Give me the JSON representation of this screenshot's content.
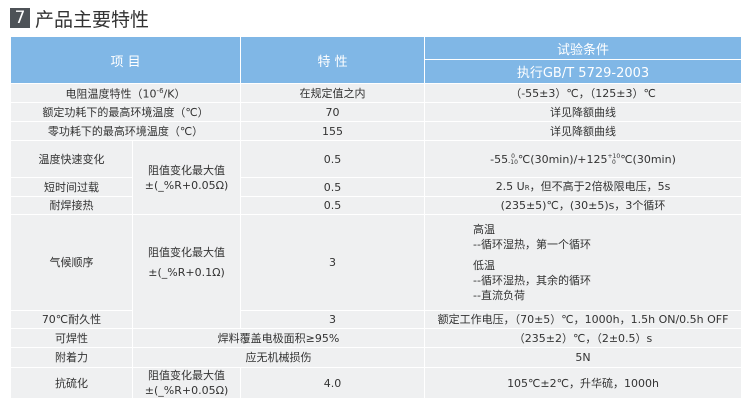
{
  "section": {
    "number": "7",
    "title": "产品主要特性"
  },
  "header": {
    "item": "项 目",
    "property": "特 性",
    "test": "试验条件",
    "standard": "执行GB/T 5729-2003"
  },
  "rows": {
    "r1": {
      "item": "电阻温度特性（10",
      "item_exp": "-6",
      "item_tail": "/K）",
      "property": "在规定值之内",
      "test": "（-55±3）℃，（125±3）℃"
    },
    "r2": {
      "item": "额定功耗下的最高环境温度（℃）",
      "property": "70",
      "test": "详见降额曲线"
    },
    "r3": {
      "item": "零功耗下的最高环境温度（℃）",
      "property": "155",
      "test": "详见降额曲线"
    },
    "r4": {
      "item": "温度快速变化",
      "property": "0.5",
      "test_a": "-55",
      "test_a_up": "0",
      "test_a_dn": "-10",
      "test_b": "℃(30min)/+125",
      "test_b_up": "+10",
      "test_b_dn": "0",
      "test_c": "℃(30min)"
    },
    "r5": {
      "item": "短时间过载",
      "property": "0.5",
      "test": "2.5 U",
      "test_sub": "R",
      "test_tail": "，但不高于2倍极限电压，5s"
    },
    "r6": {
      "item": "耐焊接热",
      "property": "0.5",
      "test": "(235±5)℃，(30±5)s，3个循环"
    },
    "r7": {
      "item": "气候顺序",
      "property": "3",
      "test": [
        "高温",
        "--循环湿热，第一个循环",
        "低温",
        "--循环湿热，其余的循环",
        "--直流负荷"
      ]
    },
    "r8": {
      "item": "70℃耐久性",
      "property": "3",
      "test": "额定工作电压，（70±5）℃，1000h，1.5h ON/0.5h OFF"
    },
    "r9": {
      "item": "可焊性",
      "property": "焊料覆盖电极面积≥95%",
      "test": "（235±2）℃，（2±0.5）s"
    },
    "r10": {
      "item": "附着力",
      "property": "应无机械损伤",
      "test": "5N"
    },
    "r11": {
      "item": "抗硫化",
      "property": "4.0",
      "test": "105℃±2℃，升华硫，1000h"
    }
  },
  "criteria": {
    "a_label": "阻值变化最大值",
    "a_value": "±(_%R+0.05Ω)",
    "b_label": "阻值变化最大值",
    "b_value": "±(_%R+0.1Ω)",
    "c_label": "阻值变化最大值",
    "c_value": "±(_%R+0.05Ω)"
  },
  "colors": {
    "header": "#80b7e6",
    "row": "#eff0f1",
    "badge": "#4d5257"
  }
}
